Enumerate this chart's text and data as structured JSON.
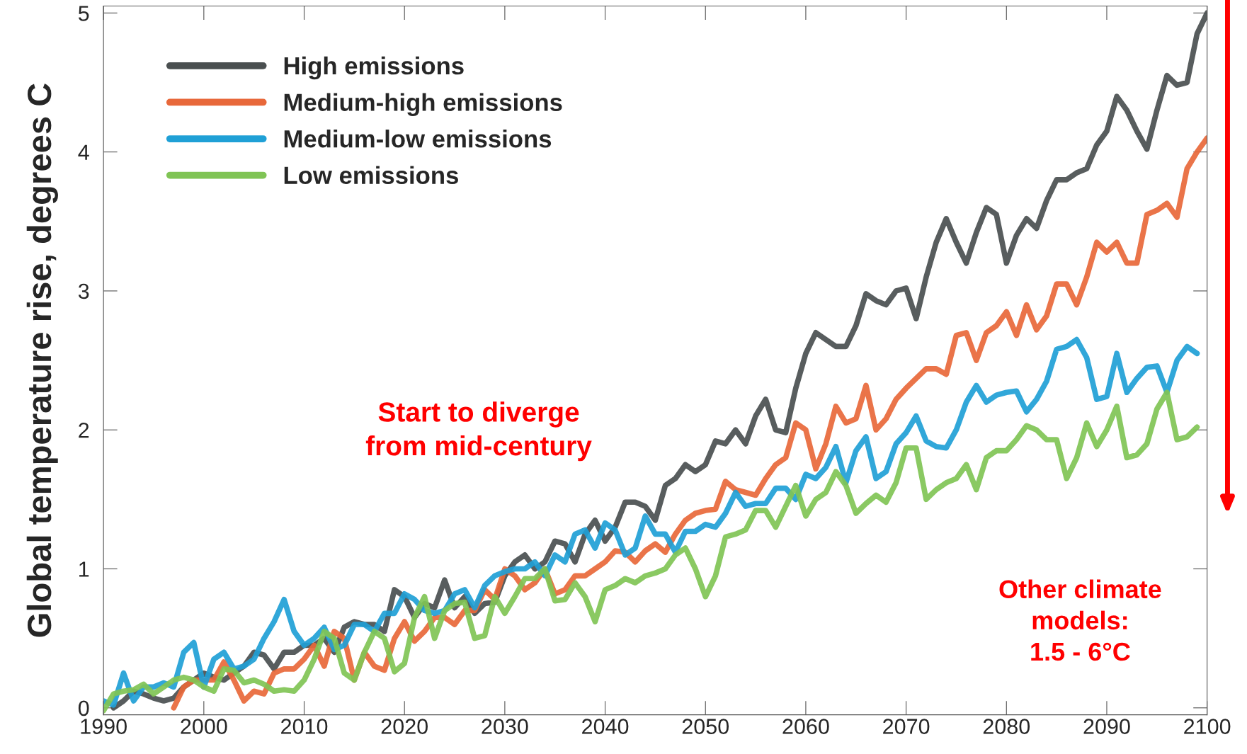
{
  "chart_data": {
    "type": "line",
    "ylabel": "Global temperature rise, degrees C",
    "x": [
      1990,
      1991,
      1992,
      1993,
      1994,
      1995,
      1996,
      1997,
      1998,
      1999,
      2000,
      2001,
      2002,
      2003,
      2004,
      2005,
      2006,
      2007,
      2008,
      2009,
      2010,
      2011,
      2012,
      2013,
      2014,
      2015,
      2016,
      2017,
      2018,
      2019,
      2020,
      2021,
      2022,
      2023,
      2024,
      2025,
      2026,
      2027,
      2028,
      2029,
      2030,
      2031,
      2032,
      2033,
      2034,
      2035,
      2036,
      2037,
      2038,
      2039,
      2040,
      2041,
      2042,
      2043,
      2044,
      2045,
      2046,
      2047,
      2048,
      2049,
      2050,
      2051,
      2052,
      2053,
      2054,
      2055,
      2056,
      2057,
      2058,
      2059,
      2060,
      2061,
      2062,
      2063,
      2064,
      2065,
      2066,
      2067,
      2068,
      2069,
      2070,
      2071,
      2072,
      2073,
      2074,
      2075,
      2076,
      2077,
      2078,
      2079,
      2080,
      2081,
      2082,
      2083,
      2084,
      2085,
      2086,
      2087,
      2088,
      2089,
      2090,
      2091,
      2092,
      2093,
      2094,
      2095,
      2096,
      2097,
      2098,
      2099,
      2100
    ],
    "series": [
      {
        "name": "High emissions",
        "color": "#4a4f50",
        "values": [
          null,
          0.0,
          0.05,
          0.12,
          0.1,
          0.07,
          0.05,
          0.07,
          0.15,
          0.2,
          0.25,
          0.22,
          0.2,
          0.25,
          0.3,
          0.4,
          0.38,
          0.28,
          0.4,
          0.4,
          0.45,
          0.45,
          0.5,
          0.4,
          0.58,
          0.62,
          0.6,
          0.6,
          0.55,
          0.85,
          0.8,
          0.65,
          0.75,
          0.72,
          0.92,
          0.72,
          0.8,
          0.68,
          0.75,
          0.76,
          0.95,
          1.05,
          1.1,
          1.0,
          1.05,
          1.2,
          1.18,
          1.05,
          1.25,
          1.35,
          1.2,
          1.3,
          1.48,
          1.48,
          1.45,
          1.35,
          1.6,
          1.65,
          1.75,
          1.7,
          1.75,
          1.92,
          1.9,
          2.0,
          1.9,
          2.1,
          2.22,
          2.0,
          1.98,
          2.3,
          2.55,
          2.7,
          2.65,
          2.6,
          2.6,
          2.75,
          2.98,
          2.93,
          2.9,
          3.0,
          3.02,
          2.8,
          3.1,
          3.35,
          3.52,
          3.35,
          3.2,
          3.42,
          3.6,
          3.55,
          3.2,
          3.4,
          3.52,
          3.45,
          3.65,
          3.8,
          3.8,
          3.85,
          3.88,
          4.05,
          4.15,
          4.4,
          4.3,
          4.15,
          4.02,
          4.3,
          4.55,
          4.48,
          4.5,
          4.85,
          5.0
        ]
      },
      {
        "name": "Medium-high emissions",
        "color": "#e8683a",
        "values": [
          null,
          null,
          null,
          null,
          null,
          null,
          null,
          0.0,
          0.15,
          0.2,
          0.2,
          0.2,
          0.33,
          0.2,
          0.05,
          0.12,
          0.1,
          0.25,
          0.28,
          0.28,
          0.35,
          0.45,
          0.3,
          0.55,
          0.5,
          0.2,
          0.4,
          0.3,
          0.27,
          0.5,
          0.62,
          0.48,
          0.55,
          0.65,
          0.65,
          0.6,
          0.7,
          0.7,
          0.85,
          0.78,
          1.0,
          0.95,
          0.85,
          0.9,
          1.0,
          0.82,
          0.85,
          0.95,
          0.95,
          1.0,
          1.05,
          1.13,
          1.12,
          1.05,
          1.13,
          1.18,
          1.12,
          1.25,
          1.35,
          1.4,
          1.42,
          1.43,
          1.63,
          1.57,
          1.55,
          1.53,
          1.65,
          1.75,
          1.8,
          2.05,
          2.0,
          1.72,
          1.9,
          2.17,
          2.05,
          2.08,
          2.32,
          2.0,
          2.08,
          2.22,
          2.3,
          2.37,
          2.44,
          2.44,
          2.4,
          2.68,
          2.7,
          2.5,
          2.7,
          2.75,
          2.85,
          2.68,
          2.9,
          2.72,
          2.82,
          3.05,
          3.05,
          2.9,
          3.1,
          3.35,
          3.28,
          3.35,
          3.2,
          3.2,
          3.55,
          3.58,
          3.63,
          3.53,
          3.88,
          4.0,
          4.1
        ]
      },
      {
        "name": "Medium-low emissions",
        "color": "#1fa0d6",
        "values": [
          0.05,
          0.02,
          0.25,
          0.05,
          0.15,
          0.15,
          0.18,
          0.15,
          0.4,
          0.47,
          0.15,
          0.35,
          0.4,
          0.28,
          0.3,
          0.35,
          0.5,
          0.62,
          0.78,
          0.55,
          0.45,
          0.5,
          0.58,
          0.42,
          0.45,
          0.6,
          0.6,
          0.55,
          0.68,
          0.68,
          0.82,
          0.78,
          0.7,
          0.68,
          0.7,
          0.82,
          0.85,
          0.72,
          0.88,
          0.95,
          0.98,
          1.0,
          1.0,
          1.05,
          0.95,
          1.1,
          1.05,
          1.25,
          1.28,
          1.15,
          1.33,
          1.28,
          1.1,
          1.15,
          1.38,
          1.25,
          1.25,
          1.12,
          1.27,
          1.27,
          1.32,
          1.3,
          1.4,
          1.55,
          1.45,
          1.47,
          1.47,
          1.58,
          1.58,
          1.5,
          1.68,
          1.65,
          1.73,
          1.88,
          1.62,
          1.85,
          1.95,
          1.65,
          1.7,
          1.9,
          1.98,
          2.1,
          1.92,
          1.88,
          1.87,
          2.0,
          2.2,
          2.32,
          2.2,
          2.25,
          2.27,
          2.28,
          2.13,
          2.22,
          2.35,
          2.58,
          2.6,
          2.65,
          2.52,
          2.22,
          2.24,
          2.55,
          2.27,
          2.37,
          2.45,
          2.46,
          2.27,
          2.5,
          2.6,
          2.55,
          null
        ]
      },
      {
        "name": "Low emissions",
        "color": "#80c455",
        "values": [
          -0.02,
          0.1,
          0.12,
          0.13,
          0.17,
          0.1,
          0.15,
          0.2,
          0.22,
          0.2,
          0.15,
          0.12,
          0.28,
          0.27,
          0.18,
          0.2,
          0.17,
          0.12,
          0.13,
          0.12,
          0.2,
          0.35,
          0.55,
          0.5,
          0.25,
          0.2,
          0.4,
          0.55,
          0.5,
          0.26,
          0.32,
          0.65,
          0.8,
          0.5,
          0.7,
          0.75,
          0.76,
          0.5,
          0.52,
          0.8,
          0.68,
          0.8,
          0.93,
          0.93,
          1.0,
          0.77,
          0.78,
          0.9,
          0.8,
          0.62,
          0.85,
          0.88,
          0.93,
          0.9,
          0.95,
          0.97,
          1.0,
          1.1,
          1.15,
          1.0,
          0.8,
          0.95,
          1.23,
          1.25,
          1.28,
          1.42,
          1.42,
          1.3,
          1.45,
          1.6,
          1.38,
          1.5,
          1.55,
          1.7,
          1.6,
          1.4,
          1.47,
          1.53,
          1.48,
          1.62,
          1.87,
          1.87,
          1.5,
          1.57,
          1.62,
          1.65,
          1.75,
          1.57,
          1.8,
          1.85,
          1.85,
          1.93,
          2.03,
          2.0,
          1.93,
          1.93,
          1.65,
          1.8,
          2.05,
          1.88,
          2.0,
          2.17,
          1.8,
          1.82,
          1.9,
          2.15,
          2.27,
          1.93,
          1.95,
          2.02,
          null
        ]
      }
    ],
    "xlim": [
      1990,
      2100
    ],
    "xticks": [
      1990,
      2000,
      2010,
      2020,
      2030,
      2040,
      2050,
      2060,
      2070,
      2080,
      2090,
      2100
    ],
    "ylim": [
      -0.05,
      5.05
    ],
    "yticks": [
      0,
      1,
      2,
      3,
      4,
      5
    ],
    "grid": false,
    "legend": "top left",
    "marker": "none",
    "line_style": "solid",
    "annotations": [
      "Start to diverge\nfrom mid-century",
      "Other climate\nmodels:\n1.5 - 6°C"
    ]
  }
}
